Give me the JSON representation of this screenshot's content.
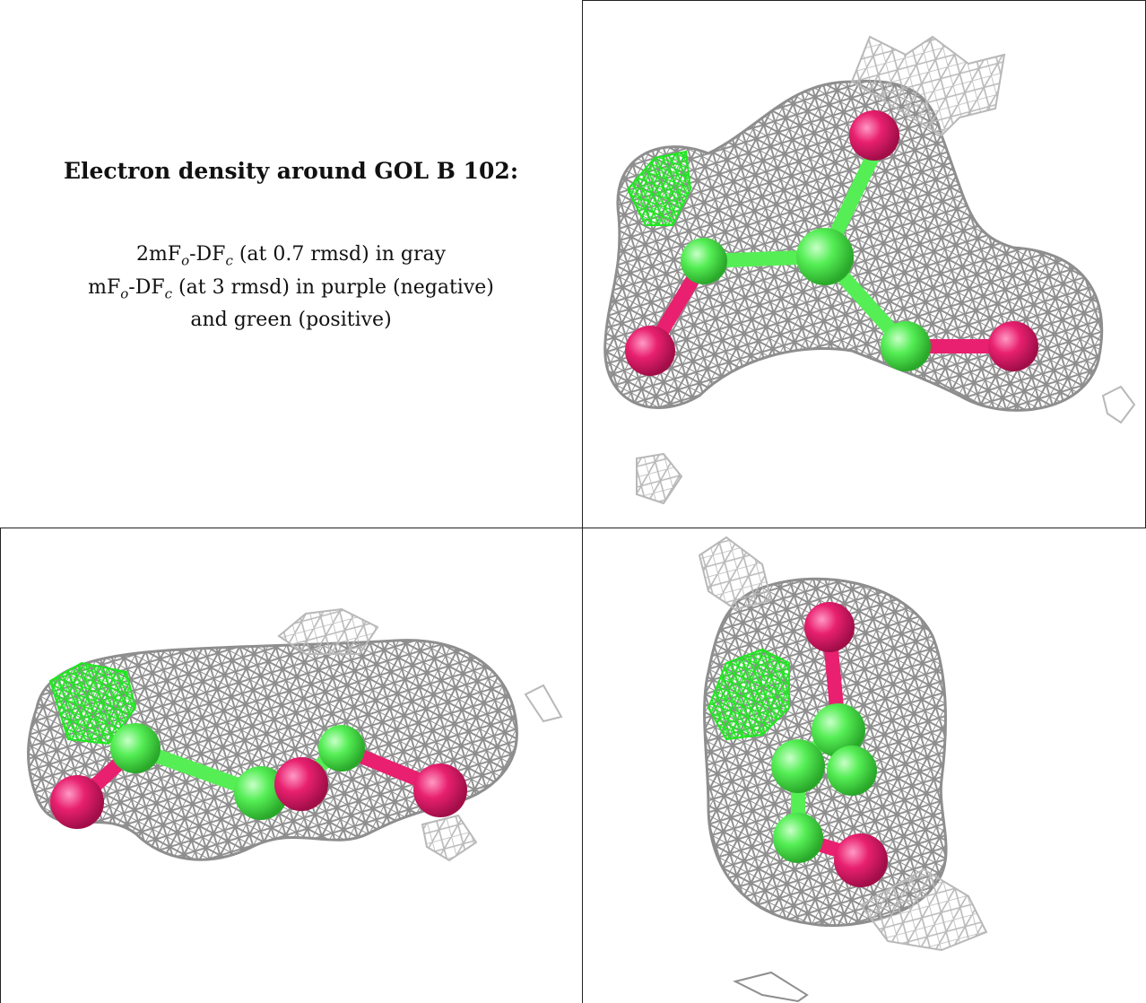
{
  "caption": {
    "title": "Electron density around GOL B 102:",
    "line1": {
      "pre": "2mF",
      "sub1": "o",
      "mid": "-DF",
      "sub2": "c",
      "post": " (at 0.7 rmsd) in gray"
    },
    "line2": {
      "pre": "mF",
      "sub1": "o",
      "mid": "-DF",
      "sub2": "c",
      "post": " (at 3 rmsd) in purple (negative)"
    },
    "line3": "and green (positive)"
  },
  "colors": {
    "mesh_gray": "#8e8e8e",
    "mesh_green": "#1ee81e",
    "carbon_green": "#55ee55",
    "oxygen_pink": "#e8206f",
    "border": "#222222"
  },
  "panels": [
    {
      "view": "view-1"
    },
    {
      "view": "view-2"
    },
    {
      "view": "view-3"
    }
  ]
}
